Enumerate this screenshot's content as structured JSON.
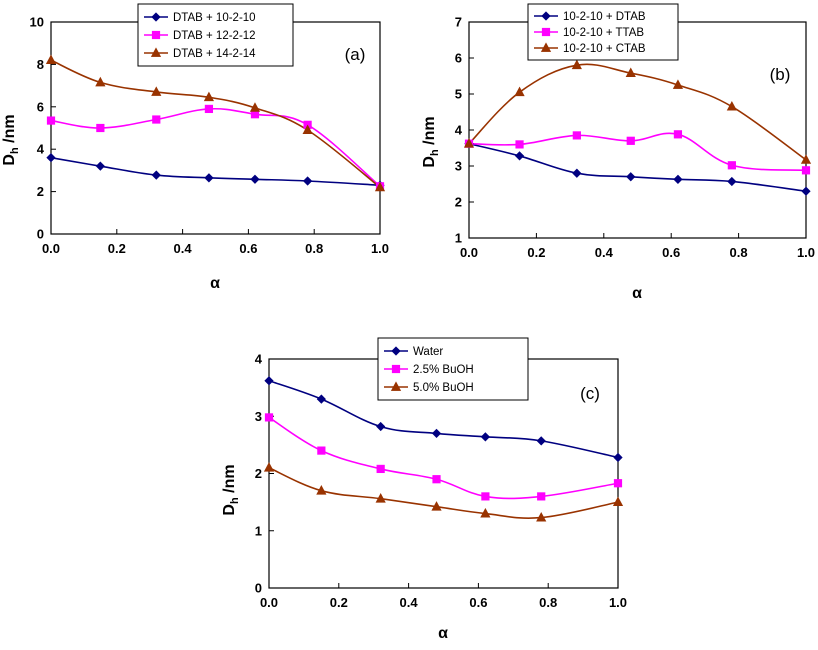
{
  "figure": {
    "markers": {
      "series0": "diamond",
      "series1": "square",
      "series2": "triangle"
    }
  },
  "chart_data": [
    {
      "type": "line",
      "panel_label": "(a)",
      "xlabel": "α",
      "ylabel_main": "D",
      "ylabel_sub": "h",
      "ylabel_rest": " /nm",
      "xlim": [
        0,
        1
      ],
      "ylim": [
        0,
        10
      ],
      "xticks": [
        0.0,
        0.2,
        0.4,
        0.6,
        0.8,
        1.0
      ],
      "xtick_labels": [
        "0.0",
        "0.2",
        "0.4",
        "0.6",
        "0.8",
        "1.0"
      ],
      "yticks": [
        0,
        2,
        4,
        6,
        8,
        10
      ],
      "ytick_labels": [
        "0",
        "2",
        "4",
        "6",
        "8",
        "10"
      ],
      "legend_position": "top-center",
      "x": [
        0.0,
        0.15,
        0.32,
        0.48,
        0.62,
        0.78,
        1.0
      ],
      "series": [
        {
          "name": "DTAB + 10-2-10",
          "color": "#000080",
          "marker": "diamond",
          "values": [
            3.6,
            3.2,
            2.78,
            2.65,
            2.58,
            2.5,
            2.3
          ]
        },
        {
          "name": "DTAB + 12-2-12",
          "color": "#ff00ff",
          "marker": "square",
          "values": [
            5.35,
            5.0,
            5.4,
            5.9,
            5.65,
            5.15,
            2.25
          ]
        },
        {
          "name": "DTAB + 14-2-14",
          "color": "#993300",
          "marker": "triangle",
          "values": [
            8.2,
            7.15,
            6.7,
            6.45,
            5.95,
            4.9,
            2.2
          ]
        }
      ]
    },
    {
      "type": "line",
      "panel_label": "(b)",
      "xlabel": "α",
      "ylabel_main": "D",
      "ylabel_sub": "h",
      "ylabel_rest": " /nm",
      "xlim": [
        0,
        1
      ],
      "ylim": [
        1,
        7
      ],
      "xticks": [
        0.0,
        0.2,
        0.4,
        0.6,
        0.8,
        1.0
      ],
      "xtick_labels": [
        "0.0",
        "0.2",
        "0.4",
        "0.6",
        "0.8",
        "1.0"
      ],
      "yticks": [
        1,
        2,
        3,
        4,
        5,
        6,
        7
      ],
      "ytick_labels": [
        "1",
        "2",
        "3",
        "4",
        "5",
        "6",
        "7"
      ],
      "legend_position": "top-center",
      "x": [
        0.0,
        0.15,
        0.32,
        0.48,
        0.62,
        0.78,
        1.0
      ],
      "series": [
        {
          "name": "10-2-10 + DTAB",
          "color": "#000080",
          "marker": "diamond",
          "values": [
            3.62,
            3.28,
            2.8,
            2.7,
            2.63,
            2.57,
            2.3
          ]
        },
        {
          "name": "10-2-10 + TTAB",
          "color": "#ff00ff",
          "marker": "square",
          "values": [
            3.62,
            3.6,
            3.85,
            3.7,
            3.88,
            3.02,
            2.88
          ]
        },
        {
          "name": "10-2-10 + CTAB",
          "color": "#993300",
          "marker": "triangle",
          "values": [
            3.62,
            5.05,
            5.8,
            5.58,
            5.25,
            4.65,
            3.17
          ]
        }
      ]
    },
    {
      "type": "line",
      "panel_label": "(c)",
      "xlabel": "α",
      "ylabel_main": "D",
      "ylabel_sub": "h",
      "ylabel_rest": " /nm",
      "xlim": [
        0,
        1
      ],
      "ylim": [
        0,
        4
      ],
      "xticks": [
        0.0,
        0.2,
        0.4,
        0.6,
        0.8,
        1.0
      ],
      "xtick_labels": [
        "0.0",
        "0.2",
        "0.4",
        "0.6",
        "0.8",
        "1.0"
      ],
      "yticks": [
        0,
        1,
        2,
        3,
        4
      ],
      "ytick_labels": [
        "0",
        "1",
        "2",
        "3",
        "4"
      ],
      "legend_position": "top-center",
      "x": [
        0.0,
        0.15,
        0.32,
        0.48,
        0.62,
        0.78,
        1.0
      ],
      "series": [
        {
          "name": "Water",
          "color": "#000080",
          "marker": "diamond",
          "values": [
            3.62,
            3.3,
            2.82,
            2.7,
            2.64,
            2.57,
            2.28
          ]
        },
        {
          "name": "2.5% BuOH",
          "color": "#ff00ff",
          "marker": "square",
          "values": [
            2.98,
            2.4,
            2.08,
            1.9,
            1.6,
            1.6,
            1.83
          ]
        },
        {
          "name": "5.0% BuOH",
          "color": "#993300",
          "marker": "triangle",
          "values": [
            2.1,
            1.7,
            1.56,
            1.42,
            1.3,
            1.23,
            1.5
          ]
        }
      ]
    }
  ]
}
